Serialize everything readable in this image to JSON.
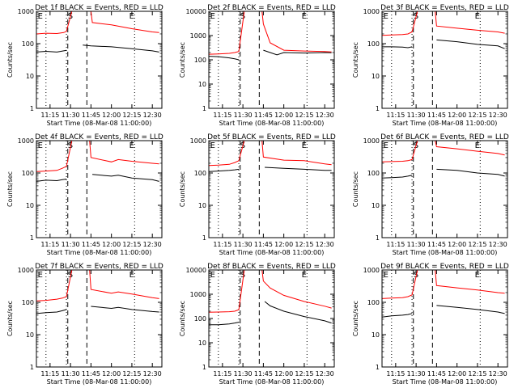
{
  "chart_data": [
    {
      "type": "line",
      "title": "Det 1f BLACK = Events, RED = LLD",
      "ylabel": "Counts/sec",
      "xlabel": "Start Time (08-Mar-08 11:00:00)",
      "yscale": "log",
      "ylim": [
        1,
        1000
      ],
      "xlim": [
        "11:05",
        "12:37"
      ],
      "yticks": [
        "1",
        "10",
        "100",
        "1000"
      ],
      "xticks": [
        "11:15",
        "11:30",
        "11:45",
        "12:00",
        "12:15",
        "12:30"
      ],
      "markers": [
        "E",
        "S",
        "E"
      ],
      "series": [
        {
          "name": "RED = LLD",
          "color": "#ff0000",
          "x": [
            "11:05",
            "11:12",
            "11:20",
            "11:25",
            "11:27",
            "11:31",
            "11:32",
            "11:45",
            "11:46",
            "12:00",
            "12:15",
            "12:30",
            "12:35"
          ],
          "y": [
            200,
            210,
            205,
            220,
            240,
            1000,
            1000,
            1000,
            450,
            380,
            290,
            230,
            220
          ]
        },
        {
          "name": "BLACK = Events",
          "color": "#000000",
          "x": [
            "11:05",
            "11:12",
            "11:20",
            "11:25",
            "11:27",
            "11:38",
            "11:39",
            "11:45",
            "12:00",
            "12:15",
            "12:30",
            "12:35"
          ],
          "y": [
            55,
            58,
            55,
            60,
            62,
            null,
            90,
            85,
            80,
            70,
            60,
            55
          ]
        }
      ]
    },
    {
      "type": "line",
      "title": "Det 2f BLACK = Events, RED = LLD",
      "ylabel": "Counts/sec",
      "xlabel": "Start Time (08-Mar-08 11:00:00)",
      "yscale": "log",
      "ylim": [
        1,
        10000
      ],
      "xlim": [
        "11:05",
        "12:37"
      ],
      "yticks": [
        "1",
        "10",
        "100",
        "1000",
        "10000"
      ],
      "xticks": [
        "11:15",
        "11:30",
        "11:45",
        "12:00",
        "12:15",
        "12:30"
      ],
      "markers": [
        "E",
        "S",
        "E"
      ],
      "series": [
        {
          "name": "RED = LLD",
          "color": "#ff0000",
          "x": [
            "11:05",
            "11:12",
            "11:20",
            "11:24",
            "11:27",
            "11:31",
            "11:44",
            "11:45",
            "11:50",
            "12:00",
            "12:15",
            "12:30",
            "12:35"
          ],
          "y": [
            170,
            175,
            185,
            200,
            220,
            10000,
            10000,
            3000,
            500,
            250,
            230,
            220,
            210
          ]
        },
        {
          "name": "BLACK = Events",
          "color": "#000000",
          "x": [
            "11:05",
            "11:12",
            "11:20",
            "11:24",
            "11:27",
            "11:41",
            "11:45",
            "11:50",
            "11:55",
            "12:00",
            "12:15",
            "12:30",
            "12:35"
          ],
          "y": [
            140,
            135,
            120,
            110,
            100,
            null,
            250,
            200,
            160,
            200,
            190,
            200,
            195
          ]
        }
      ]
    },
    {
      "type": "line",
      "title": "Det 3f BLACK = Events, RED = LLD",
      "ylabel": "Counts/sec",
      "xlabel": "Start Time (08-Mar-08 11:00:00)",
      "yscale": "log",
      "ylim": [
        1,
        1000
      ],
      "xlim": [
        "11:05",
        "12:37"
      ],
      "yticks": [
        "1",
        "10",
        "100",
        "1000"
      ],
      "xticks": [
        "11:15",
        "11:30",
        "11:45",
        "12:00",
        "12:15",
        "12:30"
      ],
      "markers": [
        "E",
        "S",
        "E"
      ],
      "series": [
        {
          "name": "RED = LLD",
          "color": "#ff0000",
          "x": [
            "11:05",
            "11:12",
            "11:20",
            "11:24",
            "11:27",
            "11:31",
            "11:44",
            "11:45",
            "12:00",
            "12:15",
            "12:30",
            "12:35"
          ],
          "y": [
            180,
            185,
            190,
            200,
            230,
            1000,
            1000,
            350,
            300,
            260,
            230,
            210
          ]
        },
        {
          "name": "BLACK = Events",
          "color": "#000000",
          "x": [
            "11:05",
            "11:12",
            "11:20",
            "11:24",
            "11:27",
            "11:43",
            "11:45",
            "12:00",
            "12:15",
            "12:30",
            "12:35"
          ],
          "y": [
            80,
            80,
            78,
            75,
            80,
            null,
            130,
            115,
            95,
            85,
            70
          ]
        }
      ]
    },
    {
      "type": "line",
      "title": "Det 4f BLACK = Events, RED = LLD",
      "ylabel": "Counts/sec",
      "xlabel": "Start Time (08-Mar-08 11:00:00)",
      "yscale": "log",
      "ylim": [
        1,
        1000
      ],
      "xlim": [
        "11:05",
        "12:37"
      ],
      "yticks": [
        "1",
        "10",
        "100",
        "1000"
      ],
      "xticks": [
        "11:15",
        "11:30",
        "11:45",
        "12:00",
        "12:15",
        "12:30"
      ],
      "markers": [
        "E",
        "S",
        "E"
      ],
      "series": [
        {
          "name": "RED = LLD",
          "color": "#ff0000",
          "x": [
            "11:05",
            "11:12",
            "11:20",
            "11:24",
            "11:27",
            "11:31",
            "11:44",
            "11:45",
            "12:00",
            "12:05",
            "12:15",
            "12:30",
            "12:35"
          ],
          "y": [
            110,
            115,
            120,
            140,
            160,
            1000,
            1000,
            300,
            220,
            260,
            230,
            200,
            190
          ]
        },
        {
          "name": "BLACK = Events",
          "color": "#000000",
          "x": [
            "11:05",
            "11:12",
            "11:20",
            "11:24",
            "11:27",
            "11:45",
            "11:46",
            "12:00",
            "12:05",
            "12:15",
            "12:30",
            "12:35"
          ],
          "y": [
            55,
            60,
            58,
            62,
            65,
            null,
            90,
            80,
            85,
            70,
            62,
            55
          ]
        }
      ]
    },
    {
      "type": "line",
      "title": "Det 5f BLACK = Events, RED = LLD",
      "ylabel": "Counts/sec",
      "xlabel": "Start Time (08-Mar-08 11:00:00)",
      "yscale": "log",
      "ylim": [
        1,
        1000
      ],
      "xlim": [
        "11:05",
        "12:37"
      ],
      "yticks": [
        "1",
        "10",
        "100",
        "1000"
      ],
      "xticks": [
        "11:15",
        "11:30",
        "11:45",
        "12:00",
        "12:15",
        "12:30"
      ],
      "markers": [
        "E",
        "S",
        "E"
      ],
      "series": [
        {
          "name": "RED = LLD",
          "color": "#ff0000",
          "x": [
            "11:05",
            "11:12",
            "11:20",
            "11:24",
            "11:27",
            "11:31",
            "11:44",
            "11:45",
            "12:00",
            "12:15",
            "12:30",
            "12:35"
          ],
          "y": [
            170,
            175,
            185,
            210,
            240,
            1000,
            1000,
            310,
            250,
            240,
            190,
            180
          ]
        },
        {
          "name": "BLACK = Events",
          "color": "#000000",
          "x": [
            "11:05",
            "11:12",
            "11:20",
            "11:24",
            "11:27",
            "11:45",
            "11:46",
            "12:00",
            "12:15",
            "12:30",
            "12:35"
          ],
          "y": [
            110,
            115,
            120,
            125,
            130,
            null,
            150,
            140,
            130,
            120,
            120
          ]
        }
      ]
    },
    {
      "type": "line",
      "title": "Det 6f BLACK = Events, RED = LLD",
      "ylabel": "Counts/sec",
      "xlabel": "Start Time (08-Mar-08 11:00:00)",
      "yscale": "log",
      "ylim": [
        1,
        1000
      ],
      "xlim": [
        "11:05",
        "12:37"
      ],
      "yticks": [
        "1",
        "10",
        "100",
        "1000"
      ],
      "xticks": [
        "11:15",
        "11:30",
        "11:45",
        "12:00",
        "12:15",
        "12:30"
      ],
      "markers": [
        "E",
        "S",
        "E"
      ],
      "series": [
        {
          "name": "RED = LLD",
          "color": "#ff0000",
          "x": [
            "11:05",
            "11:12",
            "11:20",
            "11:24",
            "11:27",
            "11:31",
            "11:44",
            "11:45",
            "12:00",
            "12:15",
            "12:30",
            "12:35"
          ],
          "y": [
            220,
            225,
            230,
            240,
            260,
            1000,
            1000,
            650,
            560,
            470,
            400,
            360
          ]
        },
        {
          "name": "BLACK = Events",
          "color": "#000000",
          "x": [
            "11:05",
            "11:12",
            "11:20",
            "11:24",
            "11:27",
            "11:42",
            "11:45",
            "12:00",
            "12:15",
            "12:30",
            "12:35"
          ],
          "y": [
            70,
            72,
            75,
            80,
            85,
            null,
            130,
            120,
            100,
            90,
            80
          ]
        }
      ]
    },
    {
      "type": "line",
      "title": "Det 7f BLACK = Events, RED = LLD",
      "ylabel": "Counts/sec",
      "xlabel": "Start Time (08-Mar-08 11:00:00)",
      "yscale": "log",
      "ylim": [
        1,
        1000
      ],
      "xlim": [
        "11:05",
        "12:37"
      ],
      "yticks": [
        "1",
        "10",
        "100",
        "1000"
      ],
      "xticks": [
        "11:15",
        "11:30",
        "11:45",
        "12:00",
        "12:15",
        "12:30"
      ],
      "markers": [
        "E",
        "S",
        "E"
      ],
      "series": [
        {
          "name": "RED = LLD",
          "color": "#ff0000",
          "x": [
            "11:05",
            "11:12",
            "11:20",
            "11:24",
            "11:27",
            "11:31",
            "11:44",
            "11:45",
            "12:00",
            "12:05",
            "12:15",
            "12:30",
            "12:35"
          ],
          "y": [
            110,
            115,
            125,
            135,
            150,
            1000,
            1000,
            250,
            190,
            210,
            180,
            140,
            130
          ]
        },
        {
          "name": "BLACK = Events",
          "color": "#000000",
          "x": [
            "11:05",
            "11:12",
            "11:20",
            "11:24",
            "11:27",
            "11:42",
            "11:45",
            "12:00",
            "12:05",
            "12:15",
            "12:30",
            "12:35"
          ],
          "y": [
            45,
            48,
            50,
            55,
            60,
            null,
            75,
            65,
            70,
            60,
            52,
            50
          ]
        }
      ]
    },
    {
      "type": "line",
      "title": "Det 8f BLACK = Events, RED = LLD",
      "ylabel": "Counts/sec",
      "xlabel": "Start Time (08-Mar-08 11:00:00)",
      "yscale": "log",
      "ylim": [
        1,
        10000
      ],
      "xlim": [
        "11:05",
        "12:37"
      ],
      "yticks": [
        "1",
        "10",
        "100",
        "1000",
        "10000"
      ],
      "xticks": [
        "11:15",
        "11:30",
        "11:45",
        "12:00",
        "12:15",
        "12:30"
      ],
      "markers": [
        "E",
        "S",
        "E"
      ],
      "series": [
        {
          "name": "RED = LLD",
          "color": "#ff0000",
          "x": [
            "11:05",
            "11:12",
            "11:20",
            "11:24",
            "11:27",
            "11:31",
            "11:44",
            "11:45",
            "11:50",
            "12:00",
            "12:15",
            "12:30",
            "12:35"
          ],
          "y": [
            180,
            185,
            190,
            200,
            230,
            10000,
            10000,
            3500,
            1800,
            900,
            500,
            320,
            270
          ]
        },
        {
          "name": "BLACK = Events",
          "color": "#000000",
          "x": [
            "11:05",
            "11:12",
            "11:20",
            "11:24",
            "11:27",
            "11:45",
            "11:46",
            "11:50",
            "12:00",
            "12:15",
            "12:30",
            "12:35"
          ],
          "y": [
            55,
            55,
            60,
            65,
            70,
            null,
            500,
            330,
            200,
            120,
            80,
            65
          ]
        }
      ]
    },
    {
      "type": "line",
      "title": "Det 9f BLACK = Events, RED = LLD",
      "ylabel": "Counts/sec",
      "xlabel": "Start Time (08-Mar-08 11:00:00)",
      "yscale": "log",
      "ylim": [
        1,
        1000
      ],
      "xlim": [
        "11:05",
        "12:37"
      ],
      "yticks": [
        "1",
        "10",
        "100",
        "1000"
      ],
      "xticks": [
        "11:15",
        "11:30",
        "11:45",
        "12:00",
        "12:15",
        "12:30"
      ],
      "markers": [
        "E",
        "S",
        "E"
      ],
      "series": [
        {
          "name": "RED = LLD",
          "color": "#ff0000",
          "x": [
            "11:05",
            "11:12",
            "11:20",
            "11:24",
            "11:27",
            "11:31",
            "11:44",
            "11:45",
            "12:00",
            "12:15",
            "12:30",
            "12:35"
          ],
          "y": [
            130,
            135,
            140,
            150,
            170,
            1000,
            1000,
            330,
            280,
            240,
            200,
            190
          ]
        },
        {
          "name": "BLACK = Events",
          "color": "#000000",
          "x": [
            "11:05",
            "11:12",
            "11:20",
            "11:24",
            "11:27",
            "11:42",
            "11:45",
            "12:00",
            "12:15",
            "12:30",
            "12:35"
          ],
          "y": [
            35,
            38,
            40,
            42,
            45,
            null,
            80,
            70,
            60,
            50,
            45
          ]
        }
      ]
    }
  ]
}
